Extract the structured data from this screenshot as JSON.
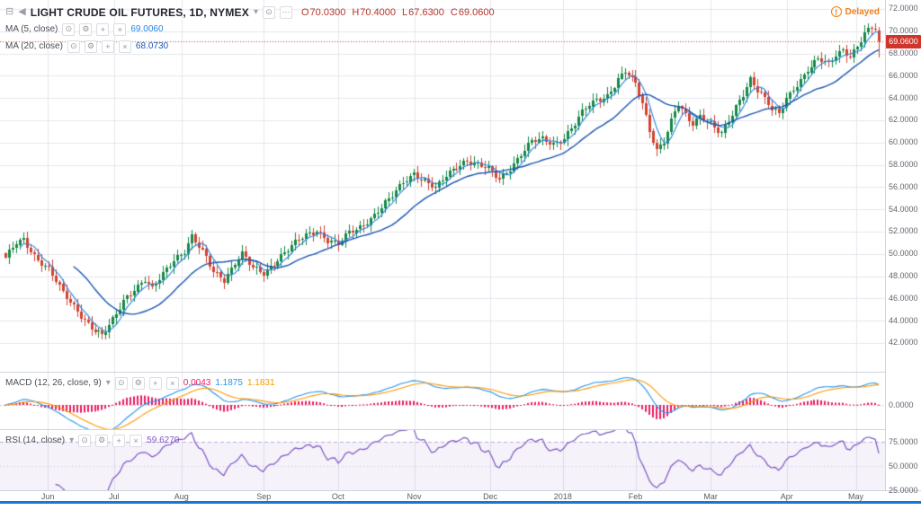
{
  "header": {
    "symbol_title": "LIGHT CRUDE OIL FUTURES, 1D, NYMEX",
    "ohlc": [
      {
        "label": "O",
        "value": "70.0300"
      },
      {
        "label": "H",
        "value": "70.4000"
      },
      {
        "label": "L",
        "value": "67.6300"
      },
      {
        "label": "C",
        "value": "69.0600"
      }
    ],
    "ohlc_color": "#b5352f",
    "delayed_label": "Delayed",
    "delayed_color": "#ef7f1a"
  },
  "icons": {
    "menu": "⊟",
    "back": "◀",
    "caret": "▾",
    "eye": "⊙",
    "gear": "⚙",
    "plus": "+",
    "close": "×",
    "more": "⋯",
    "warning": "!"
  },
  "overlays": {
    "ma5": {
      "label": "MA (5, close)",
      "value": "69.0060",
      "color": "#2986e2"
    },
    "ma20": {
      "label": "MA (20, close)",
      "value": "68.0730",
      "color": "#1a56b0"
    }
  },
  "macd_panel": {
    "label": "MACD (12, 26, close, 9)",
    "hist_value": "0.0043",
    "macd_value": "1.1875",
    "signal_value": "1.1831",
    "hist_color": "#e91e63",
    "macd_color": "#2196f3",
    "signal_color": "#ff9800",
    "zero_label": "0.0000"
  },
  "rsi_panel": {
    "label": "RSI (14, close)",
    "value": "59.6270",
    "color": "#7e57c2",
    "level_labels": [
      "75.0000",
      "50.0000",
      "25.0000"
    ],
    "levels": [
      75,
      50,
      25
    ]
  },
  "price_axis": {
    "ticks": [
      "72.0000",
      "70.0000",
      "68.0000",
      "66.0000",
      "64.0000",
      "62.0000",
      "60.0000",
      "58.0000",
      "56.0000",
      "54.0000",
      "52.0000",
      "50.0000",
      "48.0000",
      "46.0000",
      "44.0000",
      "42.0000"
    ],
    "last_price_label": "69.0600",
    "last_price": 69.06,
    "badge_color": "#d0352b"
  },
  "time_axis": {
    "months": [
      {
        "label": "Jun",
        "pos": 0.054
      },
      {
        "label": "Jul",
        "pos": 0.129
      },
      {
        "label": "Aug",
        "pos": 0.205
      },
      {
        "label": "Sep",
        "pos": 0.298
      },
      {
        "label": "Oct",
        "pos": 0.382
      },
      {
        "label": "Nov",
        "pos": 0.468
      },
      {
        "label": "Dec",
        "pos": 0.554
      },
      {
        "label": "2018",
        "pos": 0.636
      },
      {
        "label": "Feb",
        "pos": 0.718
      },
      {
        "label": "Mar",
        "pos": 0.803
      },
      {
        "label": "Apr",
        "pos": 0.889
      },
      {
        "label": "May",
        "pos": 0.967
      }
    ]
  },
  "chart_data": {
    "type": "candlestick",
    "title": "LIGHT CRUDE OIL FUTURES, 1D, NYMEX",
    "x_categories": [
      "Jun",
      "Jul",
      "Aug",
      "Sep",
      "Oct",
      "Nov",
      "Dec",
      "2018",
      "Feb",
      "Mar",
      "Apr",
      "May"
    ],
    "ylim": [
      41.8,
      72.8
    ],
    "n_bars": 245,
    "close_anchors": [
      [
        0,
        49.5
      ],
      [
        3,
        50.9
      ],
      [
        5,
        51.3
      ],
      [
        8,
        49.9
      ],
      [
        12,
        48.6
      ],
      [
        16,
        46.4
      ],
      [
        20,
        45.0
      ],
      [
        24,
        43.4
      ],
      [
        27,
        42.5
      ],
      [
        30,
        44.0
      ],
      [
        33,
        45.9
      ],
      [
        36,
        46.9
      ],
      [
        39,
        47.6
      ],
      [
        41,
        46.7
      ],
      [
        44,
        48.2
      ],
      [
        47,
        49.6
      ],
      [
        50,
        50.3
      ],
      [
        52,
        51.5
      ],
      [
        55,
        50.1
      ],
      [
        58,
        48.4
      ],
      [
        61,
        47.8
      ],
      [
        64,
        49.2
      ],
      [
        66,
        49.9
      ],
      [
        69,
        48.6
      ],
      [
        72,
        48.3
      ],
      [
        75,
        49.3
      ],
      [
        78,
        50.1
      ],
      [
        81,
        50.9
      ],
      [
        84,
        51.6
      ],
      [
        87,
        52.2
      ],
      [
        90,
        51.3
      ],
      [
        93,
        50.8
      ],
      [
        96,
        51.8
      ],
      [
        99,
        52.4
      ],
      [
        102,
        53.3
      ],
      [
        105,
        54.2
      ],
      [
        108,
        55.1
      ],
      [
        111,
        56.4
      ],
      [
        114,
        57.3
      ],
      [
        117,
        56.6
      ],
      [
        120,
        55.8
      ],
      [
        123,
        56.9
      ],
      [
        126,
        57.9
      ],
      [
        129,
        58.5
      ],
      [
        132,
        58.0
      ],
      [
        135,
        57.5
      ],
      [
        138,
        56.7
      ],
      [
        141,
        57.8
      ],
      [
        144,
        59.0
      ],
      [
        147,
        60.0
      ],
      [
        150,
        60.2
      ],
      [
        153,
        59.9
      ],
      [
        156,
        60.5
      ],
      [
        159,
        61.7
      ],
      [
        162,
        63.0
      ],
      [
        165,
        63.8
      ],
      [
        168,
        64.3
      ],
      [
        171,
        65.7
      ],
      [
        173,
        66.3
      ],
      [
        176,
        65.2
      ],
      [
        178,
        63.5
      ],
      [
        180,
        61.2
      ],
      [
        182,
        59.4
      ],
      [
        184,
        60.2
      ],
      [
        186,
        61.9
      ],
      [
        188,
        63.3
      ],
      [
        190,
        62.3
      ],
      [
        192,
        61.7
      ],
      [
        194,
        62.5
      ],
      [
        197,
        61.8
      ],
      [
        200,
        60.7
      ],
      [
        203,
        62.4
      ],
      [
        206,
        64.4
      ],
      [
        208,
        65.8
      ],
      [
        211,
        64.4
      ],
      [
        214,
        62.9
      ],
      [
        216,
        62.4
      ],
      [
        218,
        63.9
      ],
      [
        221,
        65.3
      ],
      [
        224,
        66.6
      ],
      [
        227,
        67.4
      ],
      [
        230,
        66.9
      ],
      [
        232,
        67.9
      ],
      [
        234,
        68.4
      ],
      [
        236,
        67.9
      ],
      [
        238,
        68.7
      ],
      [
        240,
        69.7
      ],
      [
        242,
        70.2
      ],
      [
        243,
        70.1
      ],
      [
        244,
        69.06
      ]
    ],
    "last_bar": {
      "open": 70.03,
      "high": 70.4,
      "low": 67.63,
      "close": 69.06
    },
    "indicators": {
      "ma_fast": 5,
      "ma_slow": 20,
      "macd": [
        12,
        26,
        9
      ],
      "rsi": 14
    },
    "up_color": "#168947",
    "down_color": "#d24332",
    "grid_color": "#e6e8ee",
    "legend_position": "top-left",
    "grid": true
  }
}
